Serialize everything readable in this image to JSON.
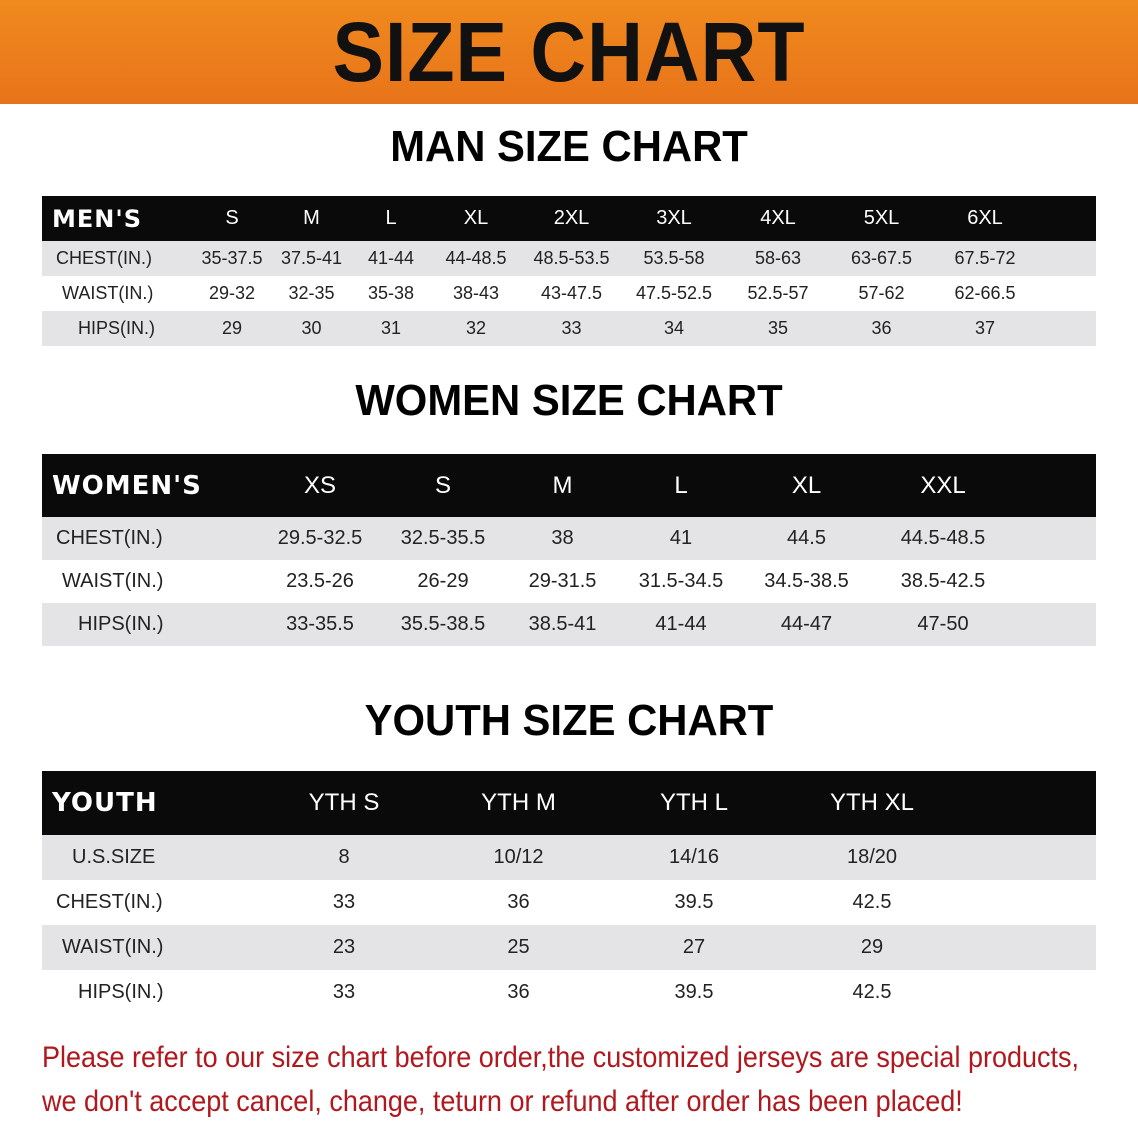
{
  "banner_title": "SIZE CHART",
  "colors": {
    "banner": "#ee8020",
    "header_row": "#0a0a0a",
    "note_text": "#b0181e"
  },
  "men": {
    "title": "MAN SIZE CHART",
    "header": [
      "MEN'S",
      "S",
      "M",
      "L",
      "XL",
      "2XL",
      "3XL",
      "4XL",
      "5XL",
      "6XL"
    ],
    "rows": [
      [
        "CHEST(IN.)",
        "35-37.5",
        "37.5-41",
        "41-44",
        "44-48.5",
        "48.5-53.5",
        "53.5-58",
        "58-63",
        "63-67.5",
        "67.5-72"
      ],
      [
        "WAIST(IN.)",
        "29-32",
        "32-35",
        "35-38",
        "38-43",
        "43-47.5",
        "47.5-52.5",
        "52.5-57",
        "57-62",
        "62-66.5"
      ],
      [
        "HIPS(IN.)",
        "29",
        "30",
        "31",
        "32",
        "33",
        "34",
        "35",
        "36",
        "37"
      ]
    ]
  },
  "women": {
    "title": "WOMEN SIZE CHART",
    "header": [
      "WOMEN'S",
      "XS",
      "S",
      "M",
      "L",
      "XL",
      "XXL"
    ],
    "rows": [
      [
        "CHEST(IN.)",
        "29.5-32.5",
        "32.5-35.5",
        "38",
        "41",
        "44.5",
        "44.5-48.5"
      ],
      [
        "WAIST(IN.)",
        "23.5-26",
        "26-29",
        "29-31.5",
        "31.5-34.5",
        "34.5-38.5",
        "38.5-42.5"
      ],
      [
        "HIPS(IN.)",
        "33-35.5",
        "35.5-38.5",
        "38.5-41",
        "41-44",
        "44-47",
        "47-50"
      ]
    ]
  },
  "youth": {
    "title": "YOUTH SIZE CHART",
    "header": [
      "YOUTH",
      "YTH S",
      "YTH M",
      "YTH L",
      "YTH XL"
    ],
    "rows": [
      [
        "U.S.SIZE",
        "8",
        "10/12",
        "14/16",
        "18/20"
      ],
      [
        "CHEST(IN.)",
        "33",
        "36",
        "39.5",
        "42.5"
      ],
      [
        "WAIST(IN.)",
        "23",
        "25",
        "27",
        "29"
      ],
      [
        "HIPS(IN.)",
        "33",
        "36",
        "39.5",
        "42.5"
      ]
    ]
  },
  "note": {
    "line1": "Please refer to our size chart before order,the customized jerseys are special products,",
    "line2": "we don't accept cancel, change, teturn or refund after order has been placed!"
  }
}
